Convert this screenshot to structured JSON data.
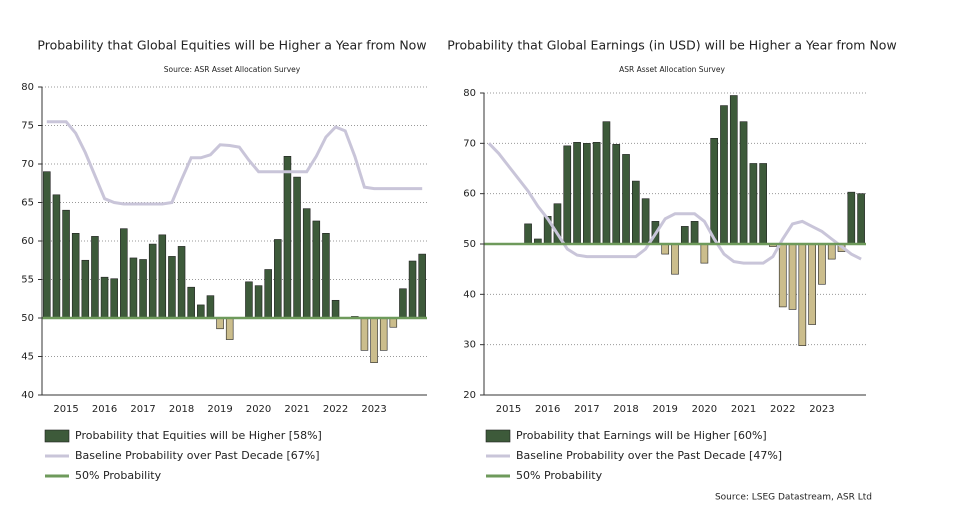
{
  "chart_data": [
    {
      "type": "bar",
      "title": "Probability that Global Equities will be Higher a Year from Now",
      "subtitle": "Source: ASR Asset Allocation Survey",
      "categories": [
        null,
        null,
        "2015",
        null,
        null,
        null,
        "2016",
        null,
        null,
        null,
        "2017",
        null,
        null,
        null,
        "2018",
        null,
        null,
        null,
        "2019",
        null,
        null,
        null,
        "2020",
        null,
        null,
        null,
        "2021",
        null,
        null,
        null,
        "2022",
        null,
        null,
        null,
        "2023",
        null,
        null,
        null,
        null,
        null
      ],
      "ylim": [
        40,
        80
      ],
      "yticks": [
        40,
        45,
        50,
        55,
        60,
        65,
        70,
        75,
        80
      ],
      "grid": true,
      "series": [
        {
          "name": "Probability that Equities will be Higher [58%]",
          "type": "bar",
          "color": "#3d5a3a",
          "below_color": "#cbbd8c",
          "values": [
            69,
            66,
            64,
            61,
            57.5,
            60.6,
            55.3,
            55.1,
            61.6,
            57.8,
            57.6,
            59.6,
            60.8,
            58,
            59.3,
            54,
            51.7,
            52.9,
            48.6,
            47.2,
            null,
            54.7,
            54.2,
            56.3,
            60.2,
            71,
            68.3,
            64.2,
            62.6,
            61,
            52.3,
            null,
            50.2,
            45.8,
            44.2,
            45.8,
            48.8,
            53.8,
            57.4,
            58.3
          ]
        },
        {
          "name": "Baseline Probability over Past Decade [67%]",
          "type": "line",
          "color": "#c9c5d9",
          "values": [
            75.5,
            75.5,
            75.5,
            74,
            71.5,
            68.5,
            65.5,
            65,
            64.8,
            64.8,
            64.8,
            64.8,
            64.8,
            65,
            68,
            70.8,
            70.8,
            71.2,
            72.5,
            72.4,
            72.2,
            70.5,
            69,
            69,
            69,
            69,
            69,
            69,
            71,
            73.5,
            74.8,
            74.3,
            71,
            67,
            66.8,
            66.8,
            66.8,
            66.8,
            66.8,
            66.8
          ]
        }
      ],
      "reference": {
        "name": "50% Probability",
        "value": 50,
        "color": "#6e9a5b"
      }
    },
    {
      "type": "bar",
      "title": "Probability that Global Earnings (in USD) will be Higher a Year from Now",
      "subtitle": "ASR Asset Allocation Survey",
      "categories": [
        null,
        null,
        "2015",
        null,
        null,
        null,
        "2016",
        null,
        null,
        null,
        "2017",
        null,
        null,
        null,
        "2018",
        null,
        null,
        null,
        "2019",
        null,
        null,
        null,
        "2020",
        null,
        null,
        null,
        "2021",
        null,
        null,
        null,
        "2022",
        null,
        null,
        null,
        "2023",
        null,
        null,
        null,
        null
      ],
      "ylim": [
        20,
        80
      ],
      "yticks": [
        20,
        30,
        40,
        50,
        60,
        70,
        80
      ],
      "grid": true,
      "series": [
        {
          "name": "Probability that Earnings will be Higher [60%]",
          "type": "bar",
          "color": "#3d5a3a",
          "below_color": "#cbbd8c",
          "values": [
            null,
            null,
            null,
            null,
            54,
            51,
            55.5,
            58,
            69.5,
            70.2,
            70,
            70.2,
            74.3,
            69.8,
            67.8,
            62.5,
            59,
            54.5,
            48,
            44,
            53.5,
            54.5,
            46.2,
            71,
            77.5,
            79.5,
            74.3,
            66,
            66,
            49.5,
            37.5,
            37,
            29.8,
            34,
            42,
            47,
            48.5,
            60.3,
            60
          ]
        },
        {
          "name": "Baseline Probability over the Past Decade [47%]",
          "type": "line",
          "color": "#c9c5d9",
          "values": [
            70,
            68,
            65.5,
            63,
            60.5,
            57.5,
            55,
            52,
            49,
            47.8,
            47.5,
            47.5,
            47.5,
            47.5,
            47.5,
            47.5,
            49,
            52,
            55,
            56,
            56,
            56,
            54.5,
            51,
            48,
            46.5,
            46.2,
            46.2,
            46.2,
            47.5,
            51,
            54,
            54.5,
            53.5,
            52.5,
            51,
            49.5,
            48,
            47
          ]
        }
      ],
      "reference": {
        "name": "50% Probability",
        "value": 50,
        "color": "#6e9a5b"
      }
    }
  ],
  "footer": "Source: LSEG Datastream,  ASR Ltd"
}
